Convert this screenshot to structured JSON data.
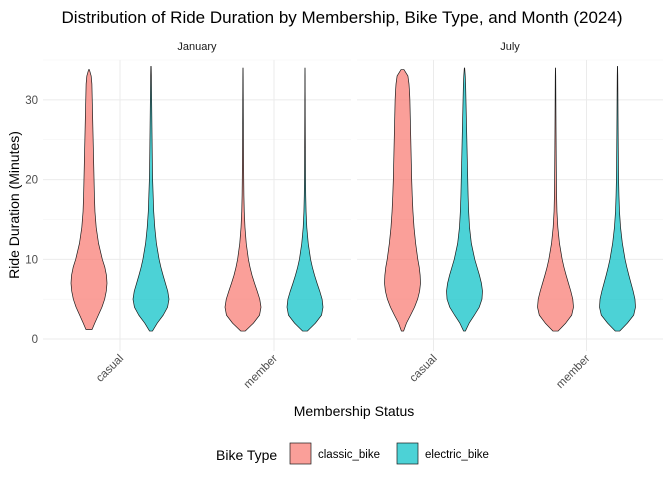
{
  "chart_data": {
    "type": "violin",
    "title": "Distribution of Ride Duration by Membership, Bike Type, and Month (2024)",
    "xlabel": "Membership Status",
    "ylabel": "Ride Duration (Minutes)",
    "ylim": [
      -1.5,
      35
    ],
    "yticks": [
      0,
      10,
      20,
      30
    ],
    "categories": [
      "casual",
      "member"
    ],
    "facets": [
      "January",
      "July"
    ],
    "legend": {
      "title": "Bike Type",
      "position": "bottom",
      "entries": [
        "classic_bike",
        "electric_bike"
      ]
    },
    "colors": {
      "classic_bike": "#F8766D",
      "electric_bike": "#00BFC4"
    },
    "grid": true,
    "violins": [
      {
        "facet": "January",
        "category": "casual",
        "series": "classic_bike",
        "y": [
          1.2,
          2,
          3,
          4,
          5,
          6,
          7,
          8,
          9,
          10,
          12,
          14,
          16,
          18,
          20,
          22,
          24,
          26,
          28,
          30,
          31,
          32,
          33,
          33.8
        ],
        "d": [
          0.17,
          0.32,
          0.52,
          0.72,
          0.87,
          0.96,
          1.0,
          0.97,
          0.88,
          0.74,
          0.53,
          0.4,
          0.33,
          0.3,
          0.28,
          0.26,
          0.24,
          0.22,
          0.2,
          0.18,
          0.17,
          0.16,
          0.12,
          0.02
        ]
      },
      {
        "facet": "January",
        "category": "casual",
        "series": "electric_bike",
        "y": [
          1,
          2,
          3,
          4,
          5,
          6,
          7,
          8,
          9,
          10,
          12,
          14,
          16,
          18,
          20,
          22,
          24,
          26,
          28,
          30,
          31,
          32,
          33,
          34.2
        ],
        "d": [
          0.08,
          0.35,
          0.68,
          0.92,
          1.0,
          0.93,
          0.8,
          0.67,
          0.55,
          0.45,
          0.3,
          0.21,
          0.15,
          0.12,
          0.09,
          0.075,
          0.065,
          0.055,
          0.045,
          0.035,
          0.03,
          0.025,
          0.02,
          0.01
        ]
      },
      {
        "facet": "January",
        "category": "member",
        "series": "classic_bike",
        "y": [
          1,
          2,
          3,
          4,
          5,
          6,
          7,
          8,
          9,
          10,
          12,
          14,
          16,
          18,
          20,
          22,
          24,
          26,
          28,
          30,
          31,
          32,
          33,
          34.0
        ],
        "d": [
          0.12,
          0.58,
          0.92,
          1.0,
          0.93,
          0.79,
          0.64,
          0.5,
          0.39,
          0.3,
          0.18,
          0.11,
          0.07,
          0.05,
          0.04,
          0.033,
          0.027,
          0.022,
          0.018,
          0.015,
          0.013,
          0.011,
          0.009,
          0.005
        ]
      },
      {
        "facet": "January",
        "category": "member",
        "series": "electric_bike",
        "y": [
          1,
          2,
          3,
          4,
          5,
          6,
          7,
          8,
          9,
          10,
          12,
          14,
          16,
          18,
          20,
          22,
          24,
          26,
          28,
          30,
          31,
          32,
          33,
          34.0
        ],
        "d": [
          0.13,
          0.58,
          0.92,
          1.0,
          0.95,
          0.82,
          0.67,
          0.53,
          0.41,
          0.31,
          0.18,
          0.1,
          0.06,
          0.04,
          0.03,
          0.025,
          0.02,
          0.016,
          0.013,
          0.011,
          0.009,
          0.008,
          0.007,
          0.004
        ]
      },
      {
        "facet": "July",
        "category": "casual",
        "series": "classic_bike",
        "y": [
          1,
          2,
          3,
          4,
          5,
          6,
          7,
          8,
          9,
          10,
          12,
          14,
          16,
          18,
          20,
          22,
          24,
          26,
          28,
          30,
          31,
          32,
          33,
          33.8
        ],
        "d": [
          0.06,
          0.22,
          0.45,
          0.67,
          0.84,
          0.95,
          1.0,
          0.98,
          0.93,
          0.85,
          0.73,
          0.64,
          0.58,
          0.54,
          0.51,
          0.49,
          0.47,
          0.45,
          0.43,
          0.41,
          0.39,
          0.36,
          0.3,
          0.08
        ]
      },
      {
        "facet": "July",
        "category": "casual",
        "series": "electric_bike",
        "y": [
          1,
          2,
          3,
          4,
          5,
          6,
          7,
          8,
          9,
          10,
          12,
          14,
          16,
          18,
          20,
          22,
          24,
          26,
          28,
          30,
          31,
          32,
          33,
          34.0
        ],
        "d": [
          0.05,
          0.26,
          0.55,
          0.82,
          0.97,
          1.0,
          0.94,
          0.83,
          0.7,
          0.57,
          0.38,
          0.28,
          0.23,
          0.2,
          0.18,
          0.16,
          0.14,
          0.12,
          0.1,
          0.08,
          0.07,
          0.06,
          0.04,
          0.01
        ]
      },
      {
        "facet": "July",
        "category": "member",
        "series": "classic_bike",
        "y": [
          1,
          2,
          3,
          4,
          5,
          6,
          7,
          8,
          9,
          10,
          12,
          14,
          16,
          18,
          20,
          22,
          24,
          26,
          28,
          30,
          31,
          32,
          33,
          34.0
        ],
        "d": [
          0.14,
          0.57,
          0.9,
          1.0,
          0.96,
          0.85,
          0.72,
          0.59,
          0.47,
          0.37,
          0.22,
          0.13,
          0.08,
          0.06,
          0.05,
          0.042,
          0.036,
          0.03,
          0.025,
          0.02,
          0.018,
          0.015,
          0.012,
          0.005
        ]
      },
      {
        "facet": "July",
        "category": "member",
        "series": "electric_bike",
        "y": [
          1,
          2,
          3,
          4,
          5,
          6,
          7,
          8,
          9,
          10,
          12,
          14,
          16,
          18,
          20,
          22,
          24,
          26,
          28,
          30,
          31,
          32,
          33,
          34.2
        ],
        "d": [
          0.12,
          0.55,
          0.9,
          1.0,
          0.97,
          0.87,
          0.75,
          0.63,
          0.52,
          0.42,
          0.27,
          0.17,
          0.11,
          0.08,
          0.06,
          0.05,
          0.042,
          0.035,
          0.029,
          0.024,
          0.021,
          0.018,
          0.015,
          0.006
        ]
      }
    ]
  }
}
